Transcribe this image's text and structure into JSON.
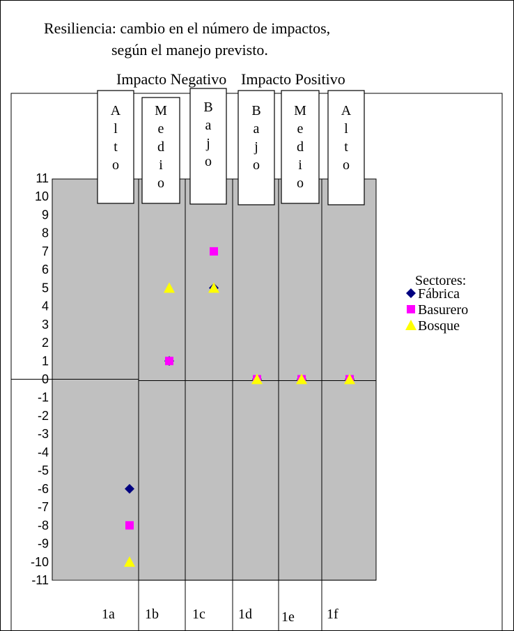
{
  "chart_data": {
    "type": "scatter",
    "title_lines": [
      "Resiliencia: cambio en el número de impactos,",
      "según el manejo previsto."
    ],
    "categories": [
      "1a",
      "1b",
      "1c",
      "1d",
      "1e",
      "1f"
    ],
    "group_headers": [
      "Impacto Negativo",
      "Impacto Positivo"
    ],
    "column_labels": [
      [
        "A",
        "l",
        "t",
        "o"
      ],
      [
        "M",
        "e",
        "d",
        "i",
        "o"
      ],
      [
        "B",
        "a",
        "j",
        "o"
      ],
      [
        "B",
        "a",
        "j",
        "o"
      ],
      [
        "M",
        "e",
        "d",
        "i",
        "o"
      ],
      [
        "A",
        "l",
        "t",
        "o"
      ]
    ],
    "ylim": [
      -11,
      11
    ],
    "yticks": [
      11,
      10,
      9,
      8,
      7,
      6,
      5,
      4,
      3,
      2,
      1,
      0,
      -1,
      -2,
      -3,
      -4,
      -5,
      -6,
      -7,
      -8,
      -9,
      -10,
      -11
    ],
    "legend_title": "Sectores:",
    "legend_position": "right",
    "series": [
      {
        "name": "Fábrica",
        "marker": "diamond",
        "color": "#000080",
        "values": [
          -6,
          1,
          5,
          0,
          0,
          0
        ]
      },
      {
        "name": "Basurero",
        "marker": "square",
        "color": "#FF00FF",
        "values": [
          -8,
          1,
          7,
          0,
          0,
          0
        ]
      },
      {
        "name": "Bosque",
        "marker": "triangle",
        "color": "#FFFF00",
        "values": [
          -10,
          5,
          5,
          0,
          0,
          0
        ]
      }
    ],
    "plot_area_color": "#C0C0C0"
  }
}
